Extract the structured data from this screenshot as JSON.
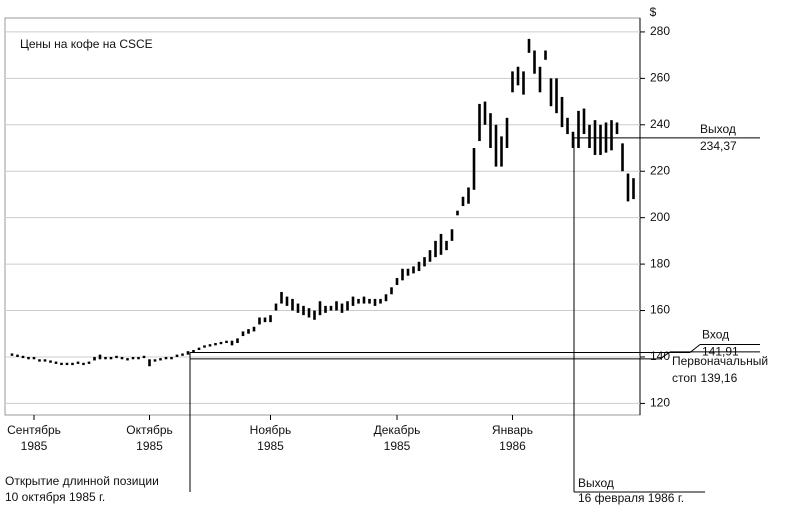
{
  "chart_data": {
    "type": "range-bar",
    "title": "Цены на кофе на CSCE",
    "y_unit": "$",
    "categories": [
      null,
      null,
      null,
      null,
      [
        "Сентябрь",
        "1985"
      ],
      null,
      null,
      null,
      null,
      null,
      null,
      null,
      null,
      null,
      null,
      null,
      null,
      null,
      null,
      null,
      null,
      null,
      null,
      null,
      null,
      [
        "Октябрь",
        "1985"
      ],
      null,
      null,
      null,
      null,
      null,
      null,
      null,
      null,
      null,
      null,
      null,
      null,
      null,
      null,
      null,
      null,
      null,
      null,
      null,
      null,
      null,
      [
        "Ноябрь",
        "1985"
      ],
      null,
      null,
      null,
      null,
      null,
      null,
      null,
      null,
      null,
      null,
      null,
      null,
      null,
      null,
      null,
      null,
      null,
      null,
      null,
      null,
      null,
      null,
      [
        "Декабрь",
        "1985"
      ],
      null,
      null,
      null,
      null,
      null,
      null,
      null,
      null,
      null,
      null,
      null,
      null,
      null,
      null,
      null,
      null,
      null,
      null,
      null,
      null,
      [
        "Январь",
        "1986"
      ],
      null,
      null,
      null,
      null,
      null,
      null,
      null,
      null,
      null,
      null,
      null,
      null,
      null,
      null,
      null,
      null,
      null,
      null,
      null,
      null,
      null,
      null
    ],
    "high": [
      141.5,
      141,
      140.5,
      140,
      140,
      139,
      139,
      138.5,
      138,
      137.5,
      137.5,
      137.5,
      138,
      137.5,
      138,
      140,
      141,
      140,
      140,
      140.5,
      140,
      139.5,
      140,
      140,
      140.5,
      139,
      139,
      139.5,
      140,
      140,
      141,
      141.5,
      142.5,
      143,
      144,
      145,
      145.5,
      146,
      146.5,
      147,
      147,
      148,
      151,
      152,
      153,
      157,
      157,
      158,
      163,
      168,
      166,
      165,
      163,
      162,
      161,
      160,
      164,
      162,
      162,
      164,
      163,
      164,
      166,
      165,
      166,
      165,
      165,
      165,
      167,
      170,
      174,
      178,
      178,
      179,
      181,
      183,
      186,
      190,
      193,
      190,
      195,
      203,
      209,
      213,
      230,
      249,
      250,
      245,
      240,
      235,
      243,
      263,
      265,
      263,
      277,
      272,
      265,
      272,
      260,
      260,
      252,
      243,
      237,
      246,
      247,
      240,
      242,
      240,
      241,
      242,
      241,
      232,
      219,
      217
    ],
    "low": [
      140.5,
      140,
      139.5,
      139,
      139,
      138,
      138,
      137.5,
      137,
      136.5,
      136.5,
      136.5,
      137,
      136.5,
      137,
      138.5,
      139,
      139,
      139,
      139.5,
      139,
      138.5,
      139,
      139,
      139.5,
      136,
      138,
      138.5,
      139,
      139,
      140,
      140.5,
      141,
      142,
      143,
      144,
      144.5,
      145,
      145.5,
      146,
      145,
      146,
      149,
      150,
      151,
      154,
      155,
      155,
      160,
      163,
      162,
      160,
      159,
      158,
      157,
      156,
      158,
      159,
      160,
      160,
      159,
      160,
      162,
      163,
      163,
      163,
      162,
      163,
      164,
      167,
      171,
      173,
      175,
      176,
      177,
      179,
      181,
      183,
      184,
      186,
      190,
      201,
      205,
      206,
      212,
      233,
      240,
      230,
      222,
      222,
      230,
      254,
      257,
      253,
      271,
      262,
      254,
      268,
      248,
      245,
      239,
      236,
      230,
      230,
      236,
      230,
      227,
      227,
      228,
      229,
      236,
      220,
      207,
      208
    ],
    "color": "#000000",
    "ylim": [
      115,
      286
    ],
    "yticks": [
      120,
      140,
      160,
      180,
      200,
      220,
      240,
      260,
      280
    ],
    "grid": true,
    "annotations": {
      "exit": {
        "label": "Выход",
        "value": 234.37,
        "value_label": "234,37"
      },
      "entry": {
        "label": "Вход",
        "value": 141.91,
        "value_label": "141,91"
      },
      "stop": {
        "label": "Первоначальный",
        "prefix": "стоп",
        "value": 139.16,
        "value_label": "139,16"
      },
      "open_note": [
        "Открытие длинной позиции",
        "10 октября 1985 г."
      ],
      "exit_note": [
        "Выход",
        "16 февраля 1986 г."
      ]
    }
  }
}
